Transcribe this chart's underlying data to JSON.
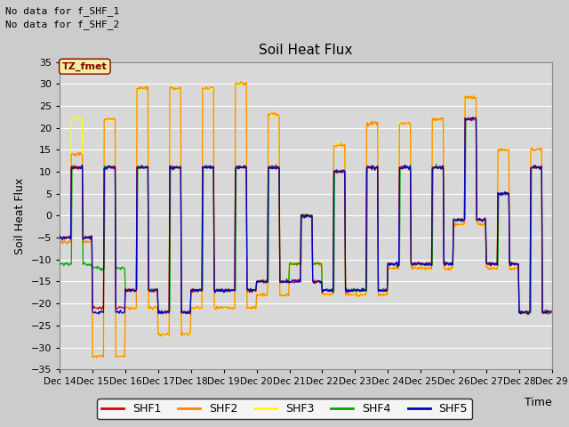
{
  "title": "Soil Heat Flux",
  "ylabel": "Soil Heat Flux",
  "xlabel": "Time",
  "ylim": [
    -35,
    35
  ],
  "note1": "No data for f_SHF_1",
  "note2": "No data for f_SHF_2",
  "tz_label": "TZ_fmet",
  "colors": {
    "SHF1": "#dd0000",
    "SHF2": "#ff8800",
    "SHF3": "#ffff00",
    "SHF4": "#00aa00",
    "SHF5": "#0000cc"
  },
  "series_names": [
    "SHF1",
    "SHF2",
    "SHF3",
    "SHF4",
    "SHF5"
  ],
  "fig_bg": "#cccccc",
  "ax_bg": "#d8d8d8",
  "tick_dates": [
    "Dec 14",
    "Dec 15",
    "Dec 16",
    "Dec 17",
    "Dec 18",
    "Dec 19",
    "Dec 20",
    "Dec 21",
    "Dec 22",
    "Dec 23",
    "Dec 24",
    "Dec 25",
    "Dec 26",
    "Dec 27",
    "Dec 28",
    "Dec 29"
  ],
  "n_days": 15,
  "pts_per_day": 48
}
